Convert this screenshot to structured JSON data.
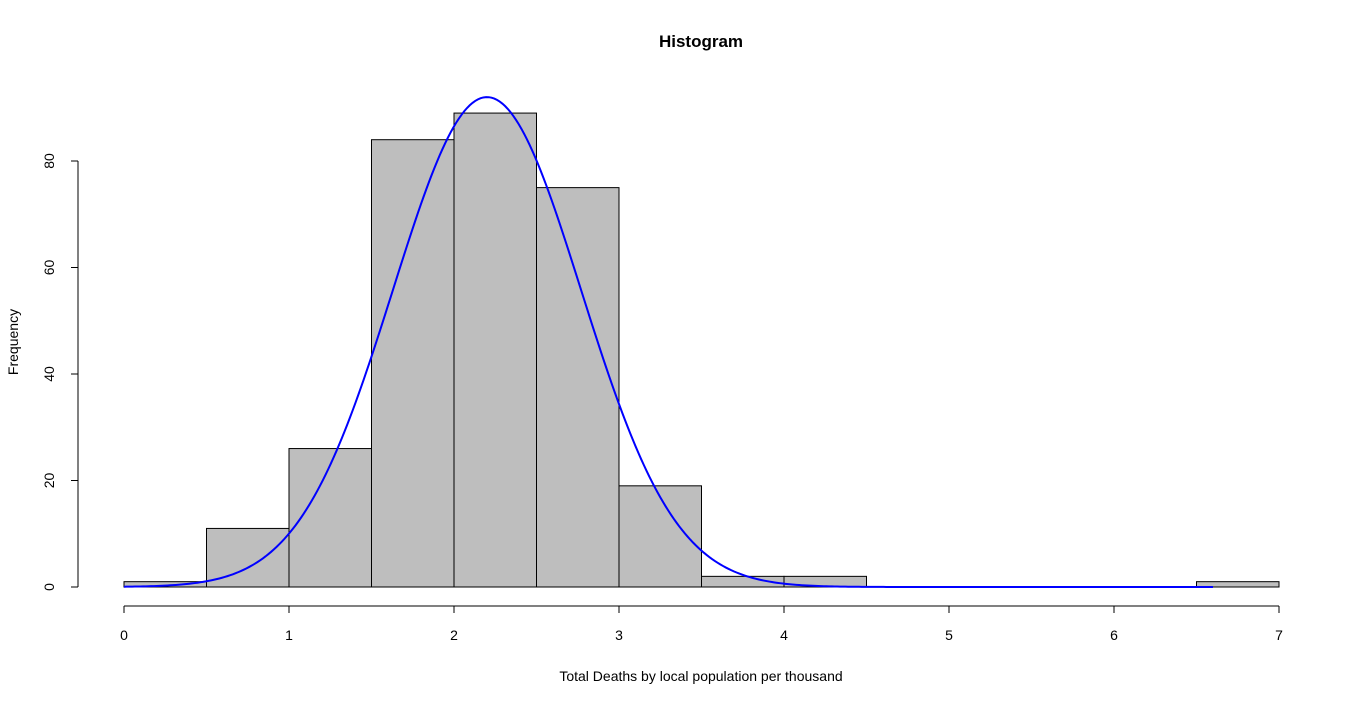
{
  "chart_data": {
    "type": "bar",
    "title": "Histogram",
    "xlabel": "Total Deaths by local population per thousand",
    "ylabel": "Frequency",
    "bins": [
      {
        "start": 0.0,
        "end": 0.5,
        "count": 1
      },
      {
        "start": 0.5,
        "end": 1.0,
        "count": 11
      },
      {
        "start": 1.0,
        "end": 1.5,
        "count": 26
      },
      {
        "start": 1.5,
        "end": 2.0,
        "count": 84
      },
      {
        "start": 2.0,
        "end": 2.5,
        "count": 89
      },
      {
        "start": 2.5,
        "end": 3.0,
        "count": 75
      },
      {
        "start": 3.0,
        "end": 3.5,
        "count": 19
      },
      {
        "start": 3.5,
        "end": 4.0,
        "count": 2
      },
      {
        "start": 4.0,
        "end": 4.5,
        "count": 2
      },
      {
        "start": 4.5,
        "end": 5.0,
        "count": 0
      },
      {
        "start": 5.0,
        "end": 5.5,
        "count": 0
      },
      {
        "start": 5.5,
        "end": 6.0,
        "count": 0
      },
      {
        "start": 6.0,
        "end": 6.5,
        "count": 0
      },
      {
        "start": 6.5,
        "end": 7.0,
        "count": 1
      }
    ],
    "xlim": [
      0,
      7
    ],
    "ylim": [
      0,
      89
    ],
    "x_ticks": [
      "0",
      "1",
      "2",
      "3",
      "4",
      "5",
      "6",
      "7"
    ],
    "y_ticks": [
      "0",
      "20",
      "40",
      "60",
      "80"
    ],
    "curve": {
      "kind": "normal density scaled to counts",
      "mean": 2.2,
      "sd": 0.57,
      "peak": 92,
      "x_range": [
        0,
        6.6
      ],
      "color": "#0000ff"
    },
    "bar_fill": "#bebebe",
    "bar_stroke": "#000000",
    "grid": false
  }
}
